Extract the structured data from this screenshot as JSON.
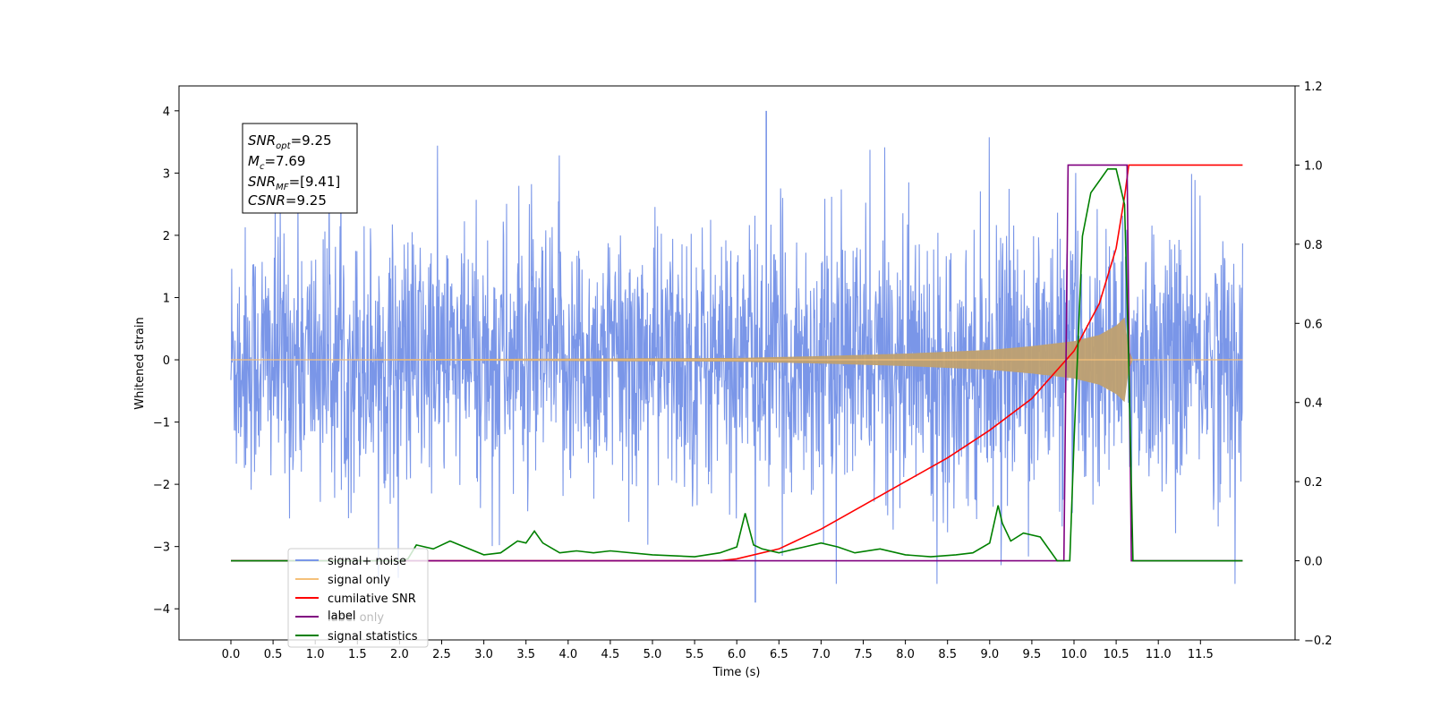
{
  "chart_data": {
    "type": "line",
    "xlabel": "Time (s)",
    "ylabel": "Whitened strain",
    "xlim": [
      -0.6,
      12.6
    ],
    "ylim_left": [
      -4.5,
      4.4
    ],
    "ylim_right": [
      -0.2,
      1.2
    ],
    "x_ticks": [
      "0.0",
      "0.5",
      "1.0",
      "1.5",
      "2.0",
      "2.5",
      "3.0",
      "3.5",
      "4.0",
      "4.5",
      "5.0",
      "5.5",
      "6.0",
      "6.5",
      "7.0",
      "7.5",
      "8.0",
      "8.5",
      "9.0",
      "9.5",
      "10.0",
      "10.5",
      "11.0",
      "11.5"
    ],
    "y_ticks_left": [
      "4",
      "3",
      "2",
      "1",
      "0",
      "−1",
      "−2",
      "−3",
      "−4"
    ],
    "y_ticks_right": [
      "1.2",
      "1.0",
      "0.8",
      "0.6",
      "0.4",
      "0.2",
      "0.0",
      "−0.2"
    ],
    "grid": false,
    "legend_placement": "lower-left",
    "annotation": {
      "lines": [
        {
          "sym": "SNR",
          "sub": "opt",
          "val": "=9.25"
        },
        {
          "sym": "M",
          "sub": "c",
          "val": "=7.69"
        },
        {
          "sym": "SNR",
          "sub": "MF",
          "val": "=[9.41]"
        },
        {
          "sym": "CSNR",
          "sub": "",
          "val": "=9.25"
        }
      ]
    },
    "series": [
      {
        "name": "signal+ noise",
        "color": "#7a96e8",
        "axis": "left",
        "x_range": [
          0.0,
          12.0
        ],
        "amplitude_envelope": 2.6,
        "peak_values": [
          4.0,
          -3.9
        ]
      },
      {
        "name": "signal only",
        "color": "#f5c07a",
        "axis": "left",
        "envelope_x": [
          0.0,
          6.0,
          7.0,
          8.0,
          9.0,
          9.5,
          10.0,
          10.3,
          10.5,
          10.6,
          10.65,
          10.7,
          12.0
        ],
        "envelope_y": [
          0.0,
          0.03,
          0.06,
          0.1,
          0.16,
          0.22,
          0.3,
          0.4,
          0.55,
          0.68,
          0.15,
          0.0,
          0.0
        ]
      },
      {
        "name": "cumilative SNR",
        "color": "#ff0000",
        "axis": "right",
        "x": [
          0.0,
          5.8,
          6.0,
          6.5,
          7.0,
          7.5,
          8.0,
          8.5,
          9.0,
          9.5,
          10.0,
          10.3,
          10.5,
          10.6,
          10.65,
          10.7,
          12.0
        ],
        "y": [
          0.0,
          0.0,
          0.005,
          0.03,
          0.08,
          0.14,
          0.2,
          0.26,
          0.33,
          0.41,
          0.53,
          0.65,
          0.79,
          0.92,
          1.0,
          1.0,
          1.0
        ]
      },
      {
        "name": "label only",
        "color": "#ffffff",
        "axis": "right",
        "legend_only": true
      },
      {
        "name": "label",
        "color": "#800080",
        "axis": "right",
        "x": [
          0.0,
          9.88,
          9.93,
          10.63,
          10.68,
          12.0
        ],
        "y": [
          0.0,
          0.0,
          1.0,
          1.0,
          0.0,
          0.0
        ]
      },
      {
        "name": "signal statistics",
        "color": "#008000",
        "axis": "right",
        "x": [
          0.0,
          0.5,
          1.0,
          1.5,
          1.8,
          2.0,
          2.1,
          2.2,
          2.4,
          2.6,
          3.0,
          3.2,
          3.4,
          3.5,
          3.6,
          3.7,
          3.9,
          4.1,
          4.3,
          4.5,
          5.0,
          5.5,
          5.8,
          6.0,
          6.1,
          6.2,
          6.3,
          6.5,
          6.8,
          7.0,
          7.2,
          7.4,
          7.7,
          8.0,
          8.3,
          8.6,
          8.8,
          9.0,
          9.1,
          9.15,
          9.25,
          9.4,
          9.6,
          9.8,
          9.95,
          10.0,
          10.1,
          10.2,
          10.3,
          10.4,
          10.5,
          10.6,
          10.65,
          10.7,
          12.0
        ],
        "y": [
          0.0,
          0.0,
          0.0,
          0.0,
          0.0,
          0.0,
          0.005,
          0.04,
          0.03,
          0.05,
          0.015,
          0.02,
          0.05,
          0.045,
          0.075,
          0.045,
          0.02,
          0.025,
          0.02,
          0.025,
          0.015,
          0.01,
          0.02,
          0.035,
          0.12,
          0.04,
          0.03,
          0.02,
          0.035,
          0.045,
          0.035,
          0.02,
          0.03,
          0.015,
          0.01,
          0.015,
          0.02,
          0.045,
          0.14,
          0.095,
          0.05,
          0.07,
          0.06,
          0.0,
          0.0,
          0.3,
          0.82,
          0.93,
          0.96,
          0.99,
          0.99,
          0.9,
          0.5,
          0.0,
          0.0
        ]
      }
    ]
  }
}
